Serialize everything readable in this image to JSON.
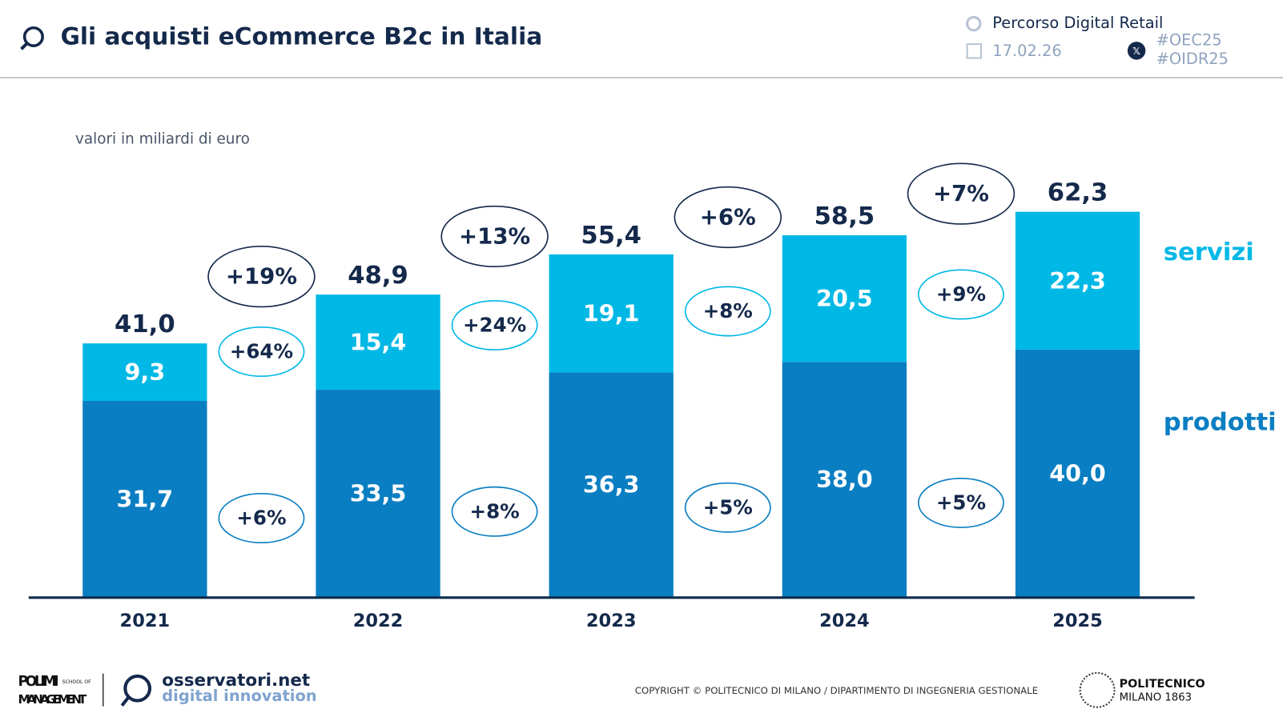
{
  "header": {
    "title": "Gli acquisti eCommerce B2c in Italia",
    "path": "Percorso Digital Retail",
    "date": "17.02.26",
    "hashtags": [
      "#OEC25",
      "#OIDR25"
    ]
  },
  "chart_data": {
    "type": "stacked_bar",
    "subtitle": "valori in miliardi di euro",
    "categories": [
      "2021",
      "2022",
      "2023",
      "2024",
      "2025"
    ],
    "series": [
      {
        "name": "prodotti",
        "color": "#0a7ec2",
        "values": [
          31.7,
          33.5,
          36.3,
          38.0,
          40.0
        ],
        "value_labels": [
          "31,7",
          "33,5",
          "36,3",
          "38,0",
          "40,0"
        ]
      },
      {
        "name": "servizi",
        "color": "#00b8e6",
        "values": [
          9.3,
          15.4,
          19.1,
          20.5,
          22.3
        ],
        "value_labels": [
          "9,3",
          "15,4",
          "19,1",
          "20,5",
          "22,3"
        ]
      }
    ],
    "totals": [
      41.0,
      48.9,
      55.4,
      58.5,
      62.3
    ],
    "total_labels": [
      "41,0",
      "48,9",
      "55,4",
      "58,5",
      "62,3"
    ],
    "growth": {
      "total": [
        "+19%",
        "+13%",
        "+6%",
        "+7%"
      ],
      "servizi": [
        "+64%",
        "+24%",
        "+8%",
        "+9%"
      ],
      "prodotti": [
        "+6%",
        "+8%",
        "+5%",
        "+5%"
      ]
    },
    "ylim": [
      0,
      70
    ]
  },
  "footer": {
    "copyright": "COPYRIGHT © POLITECNICO DI MILANO / DIPARTIMENTO DI INGEGNERIA GESTIONALE",
    "polimi": "POLIMI",
    "school": "SCHOOL OF",
    "management": "MANAGEMENT",
    "osservatori": "osservatori.net",
    "innovation": "digital innovation",
    "politecnico": "POLITECNICO",
    "milano": "MILANO 1863"
  }
}
